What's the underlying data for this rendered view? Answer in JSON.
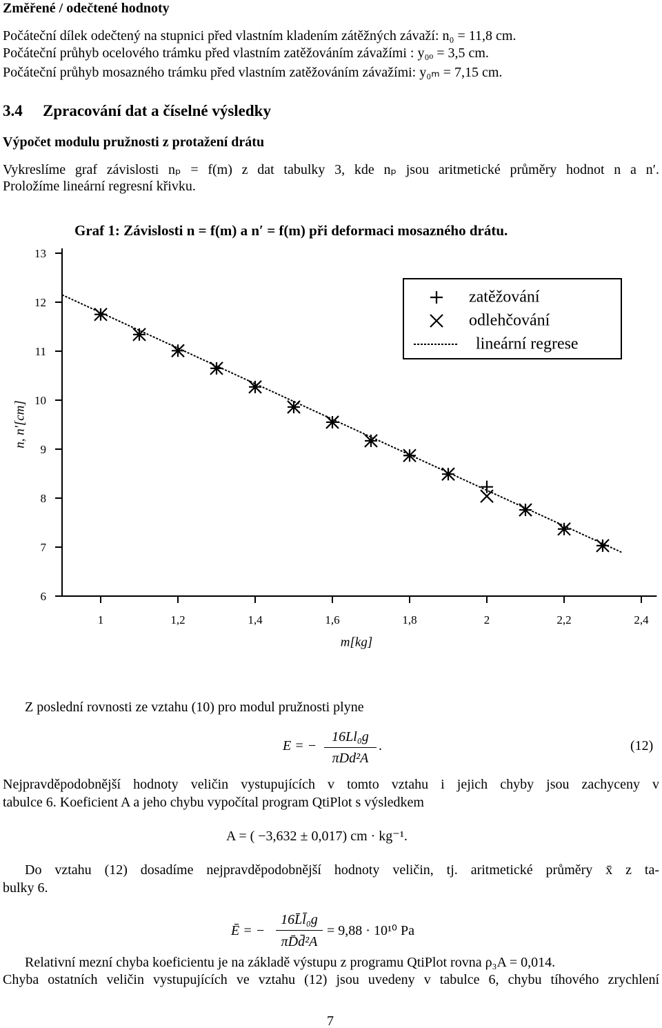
{
  "heading": "Změřené / odečtené hodnoty",
  "initial_values": [
    "Počáteční dílek odečtený na stupnici před vlastním kladením zátěžných závaží: n₀ = 11,8 cm.",
    "Počáteční průhyb ocelového trámku před vlastním zatěžováním závažími : y₀ₒ = 3,5 cm.",
    "Počáteční průhyb mosazného trámku před vlastním zatěžováním závažími: y₀ₘ = 7,15 cm."
  ],
  "section": {
    "number": "3.4",
    "title": "Zpracování dat a číselné výsledky"
  },
  "subsection": "Výpočet modulu pružnosti z protažení drátu",
  "intro": [
    "Vykreslíme graf závislosti nₚ = f(m) z dat tabulky 3, kde nₚ jsou aritmetické průměry hodnot n a n′.",
    "Proložíme lineární regresní křivku."
  ],
  "chart_data": {
    "type": "scatter",
    "title": "Graf 1: Závislosti n = f(m) a n′ = f(m) při deformaci mosazného drátu.",
    "x_label": "m[kg]",
    "y_label": "n, n′[cm]",
    "x": [
      1,
      1.1,
      1.2,
      1.3,
      1.4,
      1.5,
      1.6,
      1.7,
      1.8,
      1.9,
      2,
      2.1,
      2.2,
      2.3
    ],
    "series": [
      {
        "name": "zatěžování",
        "marker": "+",
        "color": "#000000",
        "values": [
          11.75,
          11.34,
          11.01,
          10.65,
          10.27,
          9.86,
          9.55,
          9.17,
          8.87,
          8.49,
          8.23,
          7.76,
          7.37,
          7.03
        ]
      },
      {
        "name": "odlehčování",
        "marker": "x",
        "color": "#000000",
        "values": [
          11.75,
          11.34,
          11.01,
          10.65,
          10.27,
          9.86,
          9.55,
          9.17,
          8.87,
          8.49,
          8.04,
          7.76,
          7.37,
          7.03
        ]
      },
      {
        "name": "lineární regrese",
        "marker": "dotted-line",
        "color": "#000000",
        "x": [
          0.9,
          2.35
        ],
        "values": [
          12.15,
          6.89
        ]
      }
    ],
    "xlim": [
      0.9,
      2.44
    ],
    "ylim": [
      6,
      13.1
    ],
    "xticks": [
      1,
      {
        "value": 1.2,
        "label": "1,2"
      },
      {
        "value": 1.4,
        "label": "1,4"
      },
      {
        "value": 1.6,
        "label": "1,6"
      },
      {
        "value": 1.8,
        "label": "1,8"
      },
      2,
      {
        "value": 2.2,
        "label": "2,2"
      },
      {
        "value": 2.4,
        "label": "2,4"
      }
    ],
    "yticks": [
      6,
      7,
      8,
      9,
      10,
      11,
      12,
      13
    ],
    "grid": false,
    "legend": "upper right"
  },
  "text1": "Z poslední rovnosti ze vztahu (10) pro modul pružnosti plyne",
  "equation_12": {
    "lhs": "E = −",
    "numerator": "16Ll₀g",
    "denominator": "πDd²A",
    "end": ".",
    "number": "(12)"
  },
  "text2": [
    "Nejpravděpodobnější hodnoty veličin vystupujících v tomto vztahu i jejich chyby jsou zachyceny v",
    "tabulce 6. Koeficient A a jeho chybu vypočítal program QtiPlot s výsledkem"
  ],
  "result_A": "A = ( −3,632 ± 0,017) cm · kg⁻¹.",
  "text3": [
    "Do vztahu (12) dosadíme nejpravděpodobnější hodnoty veličin, tj. aritmetické průměry x̄ z ta-",
    "bulky 6."
  ],
  "equation_E": {
    "lhs": "Ē = −",
    "numerator": "16L̄l̄₀g",
    "denominator": "πD̄d̄²A",
    "rhs": "= 9,88 · 10¹⁰ Pa"
  },
  "text4": [
    "Relativní mezní chyba koeficientu je na základě výstupu z programu QtiPlot rovna ρ₃A = 0,014.",
    "Chyba ostatních veličin vystupujících ve vztahu (12) jsou uvedeny v tabulce 6, chybu tíhového zrychlení"
  ],
  "page_number": "7"
}
